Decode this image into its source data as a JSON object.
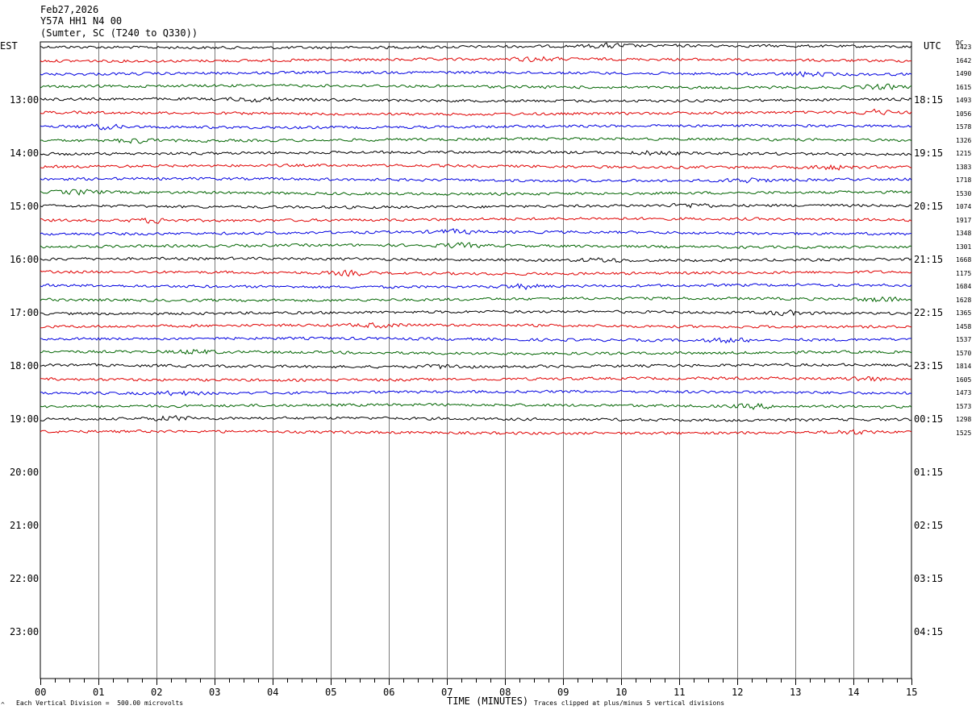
{
  "header": {
    "date": "Feb27,2026",
    "station": "Y57A HH1 N4 00",
    "location": "(Sumter, SC (T240 to Q330))"
  },
  "axis_labels": {
    "left": "EST",
    "right": "UTC",
    "dc": "DC",
    "xlabel": "TIME (MINUTES)",
    "footnote_left": "Each Vertical Division =  500.00 microvolts",
    "footnote_right": "Traces clipped at plus/minus 5 vertical divisions",
    "corner_mark": "^"
  },
  "chart_data": {
    "type": "line",
    "title": "Y57A HH1 N4 00",
    "xlabel": "TIME (MINUTES)",
    "xlim": [
      0,
      15
    ],
    "x_ticks": [
      "00",
      "01",
      "02",
      "03",
      "04",
      "05",
      "06",
      "07",
      "08",
      "09",
      "10",
      "11",
      "12",
      "13",
      "14",
      "15"
    ],
    "est_hour_labels": [
      "13:00",
      "14:00",
      "15:00",
      "16:00",
      "17:00",
      "18:00",
      "19:00",
      "20:00",
      "21:00",
      "22:00",
      "23:00"
    ],
    "utc_hour_labels": [
      "18:15",
      "19:15",
      "20:15",
      "21:15",
      "22:15",
      "23:15",
      "00:15",
      "01:15",
      "02:15",
      "03:15",
      "04:15"
    ],
    "trace_colors": [
      "#000000",
      "#e00000",
      "#0000e0",
      "#006400"
    ],
    "dc_offsets": [
      "1423",
      "1642",
      "1490",
      "1615",
      "1493",
      "1056",
      "1578",
      "1326",
      "1215",
      "1383",
      "1718",
      "1530",
      "1074",
      "1917",
      "1348",
      "1301",
      "1668",
      "1175",
      "1684",
      "1628",
      "1365",
      "1458",
      "1537",
      "1570",
      "1814",
      "1605",
      "1473",
      "1573",
      "1298",
      "1525"
    ],
    "trace_count": 30,
    "minutes_per_trace": 15,
    "vertical_division_microvolts": 500.0,
    "clip_divisions": 5,
    "grid": true,
    "series": []
  }
}
